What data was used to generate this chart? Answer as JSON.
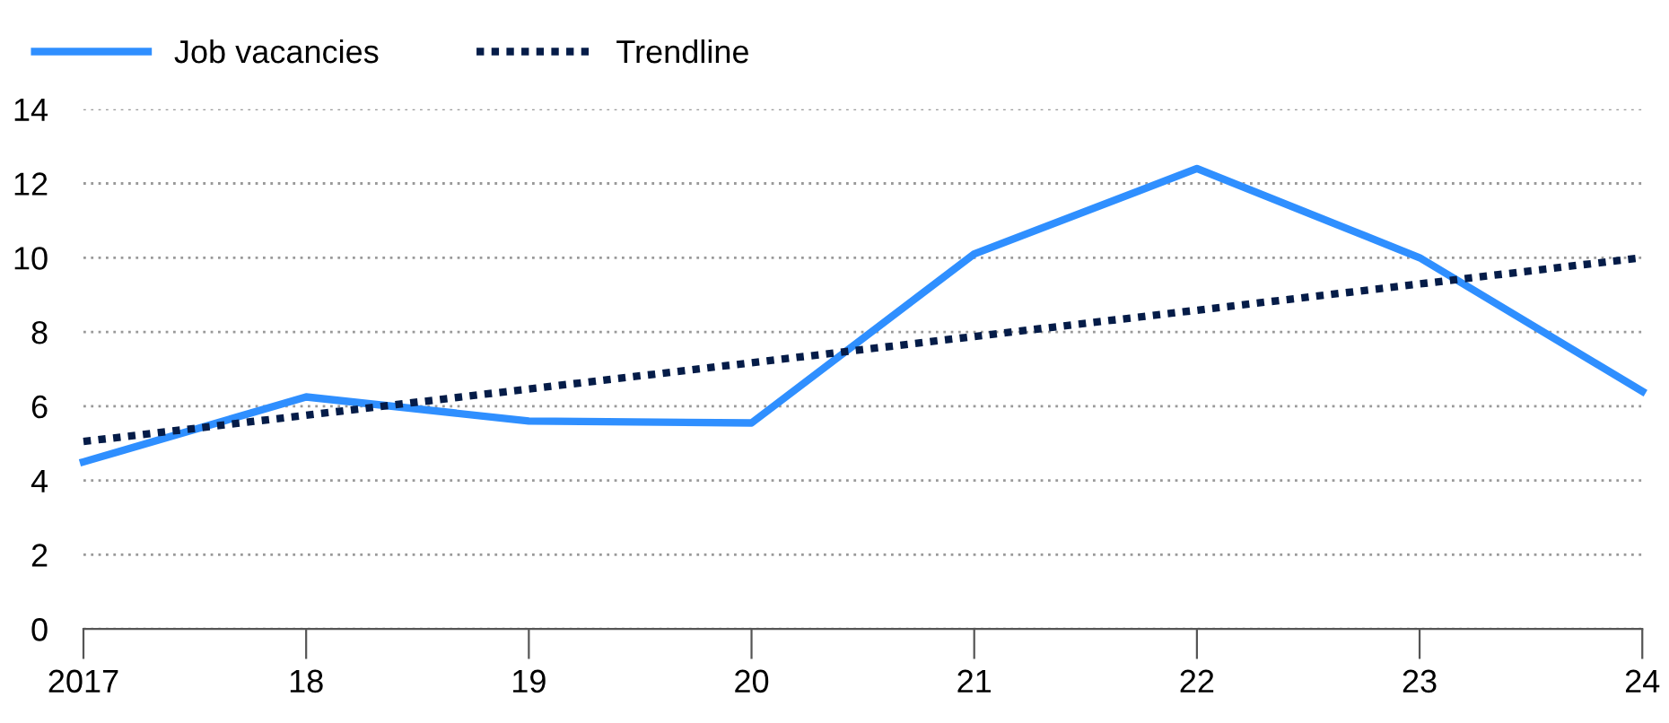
{
  "chart_data": {
    "type": "line",
    "x": [
      2017,
      2018,
      2019,
      2020,
      2021,
      2022,
      2023,
      2024
    ],
    "series": [
      {
        "name": "Job vacancies",
        "color": "#2f8fff",
        "values": [
          4.5,
          6.25,
          5.6,
          5.55,
          10.1,
          12.4,
          10.0,
          6.4
        ],
        "line_style": "solid"
      },
      {
        "name": "Trendline",
        "color": "#051c48",
        "type": "line",
        "x": [
          2017,
          2024
        ],
        "values": [
          5.05,
          10.0
        ],
        "line_style": "dotted"
      }
    ],
    "xlim": [
      2017,
      2024
    ],
    "xticks": [
      2017,
      {
        "value": 2018,
        "label": "18"
      },
      {
        "value": 2019,
        "label": "19"
      },
      {
        "value": 2020,
        "label": "20"
      },
      {
        "value": 2021,
        "label": "21"
      },
      {
        "value": 2022,
        "label": "22"
      },
      {
        "value": 2023,
        "label": "23"
      },
      {
        "value": 2024,
        "label": "24"
      }
    ],
    "ylim": [
      0,
      14
    ],
    "yticks": [
      0,
      2,
      4,
      6,
      8,
      10,
      12,
      14
    ],
    "grid": "y",
    "legend": "top left"
  }
}
